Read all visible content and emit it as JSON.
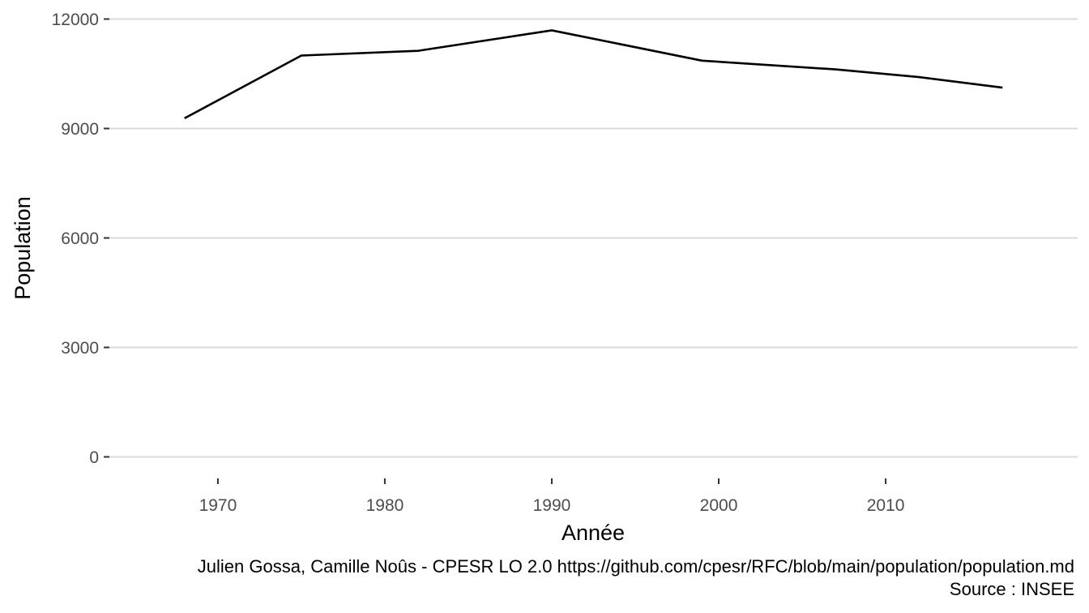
{
  "chart_data": {
    "type": "line",
    "title": "",
    "xlabel": "Année",
    "ylabel": "Population",
    "x": [
      1968,
      1975,
      1982,
      1990,
      1999,
      2007,
      2012,
      2017
    ],
    "series": [
      {
        "values": [
          9280,
          11000,
          11130,
          11690,
          10860,
          10620,
          10410,
          10120
        ],
        "color": "#000000"
      }
    ],
    "xlim": [
      1963.5,
      2021.5
    ],
    "ylim": [
      -590,
      12300
    ],
    "x_ticks": [
      1970,
      1980,
      1990,
      2000,
      2010
    ],
    "y_ticks": [
      0,
      3000,
      6000,
      9000,
      12000
    ],
    "grid": {
      "horizontal": true,
      "vertical": false,
      "color": "#d9d9d9"
    }
  },
  "caption": {
    "line1": "Julien Gossa, Camille Noûs - CPESR LO 2.0 https://github.com/cpesr/RFC/blob/main/population/population.md",
    "line2": "Source : INSEE"
  }
}
